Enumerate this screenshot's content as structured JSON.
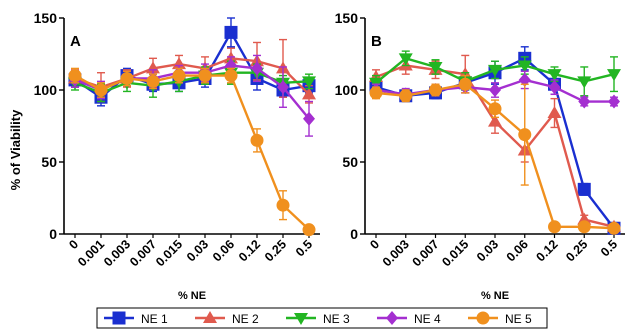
{
  "ylabel": "% of Viability",
  "legend": {
    "placement": "bottom",
    "entries": [
      {
        "name": "NE 1",
        "color": "#1a2fd0",
        "marker": "square"
      },
      {
        "name": "NE 2",
        "color": "#e05a4e",
        "marker": "triangle-up"
      },
      {
        "name": "NE 3",
        "color": "#22b522",
        "marker": "triangle-down"
      },
      {
        "name": "NE 4",
        "color": "#a42fd0",
        "marker": "diamond"
      },
      {
        "name": "NE 5",
        "color": "#f0901e",
        "marker": "circle"
      }
    ]
  },
  "chart_data": [
    {
      "type": "line",
      "panel_label": "A",
      "xlabel": "% NE",
      "ylabel": "% of Viability",
      "categories": [
        "0",
        "0.001",
        "0.003",
        "0.007",
        "0.015",
        "0.03",
        "0.06",
        "0.12",
        "0.25",
        "0.5"
      ],
      "ylim": [
        0,
        150
      ],
      "yticks": [
        0,
        50,
        100,
        150
      ],
      "grid": false,
      "series": [
        {
          "name": "NE 1",
          "values": [
            107,
            95,
            110,
            104,
            105,
            108,
            140,
            108,
            100,
            103
          ],
          "errors": [
            5,
            6,
            5,
            5,
            6,
            6,
            10,
            8,
            5,
            5
          ]
        },
        {
          "name": "NE 2",
          "values": [
            108,
            102,
            108,
            115,
            118,
            115,
            122,
            120,
            115,
            97
          ],
          "errors": [
            6,
            10,
            6,
            7,
            6,
            8,
            7,
            13,
            20,
            6
          ]
        },
        {
          "name": "NE 3",
          "values": [
            105,
            98,
            105,
            103,
            106,
            110,
            112,
            112,
            105,
            106
          ],
          "errors": [
            5,
            6,
            6,
            8,
            7,
            6,
            8,
            6,
            5,
            5
          ]
        },
        {
          "name": "NE 4",
          "values": [
            107,
            100,
            108,
            108,
            112,
            112,
            117,
            115,
            102,
            80
          ],
          "errors": [
            5,
            6,
            5,
            6,
            5,
            6,
            6,
            9,
            14,
            12
          ]
        },
        {
          "name": "NE 5",
          "values": [
            110,
            100,
            108,
            106,
            110,
            110,
            110,
            65,
            20,
            3
          ],
          "errors": [
            5,
            5,
            5,
            5,
            5,
            5,
            5,
            8,
            10,
            2
          ]
        }
      ]
    },
    {
      "type": "line",
      "panel_label": "B",
      "xlabel": "% NE",
      "categories": [
        "0",
        "0.003",
        "0.007",
        "0.015",
        "0.03",
        "0.06",
        "0.12",
        "0.25",
        "0.5"
      ],
      "ylim": [
        0,
        150
      ],
      "yticks": [
        0,
        50,
        100,
        150
      ],
      "grid": false,
      "series": [
        {
          "name": "NE 1",
          "values": [
            102,
            96,
            98,
            105,
            112,
            122,
            104,
            31,
            4
          ],
          "errors": [
            6,
            4,
            4,
            5,
            8,
            8,
            7,
            4,
            3
          ]
        },
        {
          "name": "NE 2",
          "values": [
            109,
            117,
            114,
            111,
            78,
            58,
            84,
            10,
            5
          ],
          "errors": [
            5,
            6,
            6,
            13,
            8,
            8,
            10,
            3,
            2
          ]
        },
        {
          "name": "NE 3",
          "values": [
            105,
            122,
            116,
            106,
            114,
            117,
            111,
            106,
            111
          ],
          "errors": [
            5,
            5,
            5,
            6,
            6,
            6,
            5,
            10,
            12
          ]
        },
        {
          "name": "NE 4",
          "values": [
            100,
            97,
            100,
            102,
            100,
            107,
            102,
            92,
            92
          ],
          "errors": [
            4,
            4,
            4,
            4,
            5,
            6,
            5,
            3,
            3
          ]
        },
        {
          "name": "NE 5",
          "values": [
            98,
            96,
            100,
            104,
            87,
            69,
            5,
            5,
            4
          ],
          "errors": [
            4,
            4,
            4,
            6,
            6,
            35,
            2,
            2,
            2
          ]
        }
      ]
    }
  ]
}
